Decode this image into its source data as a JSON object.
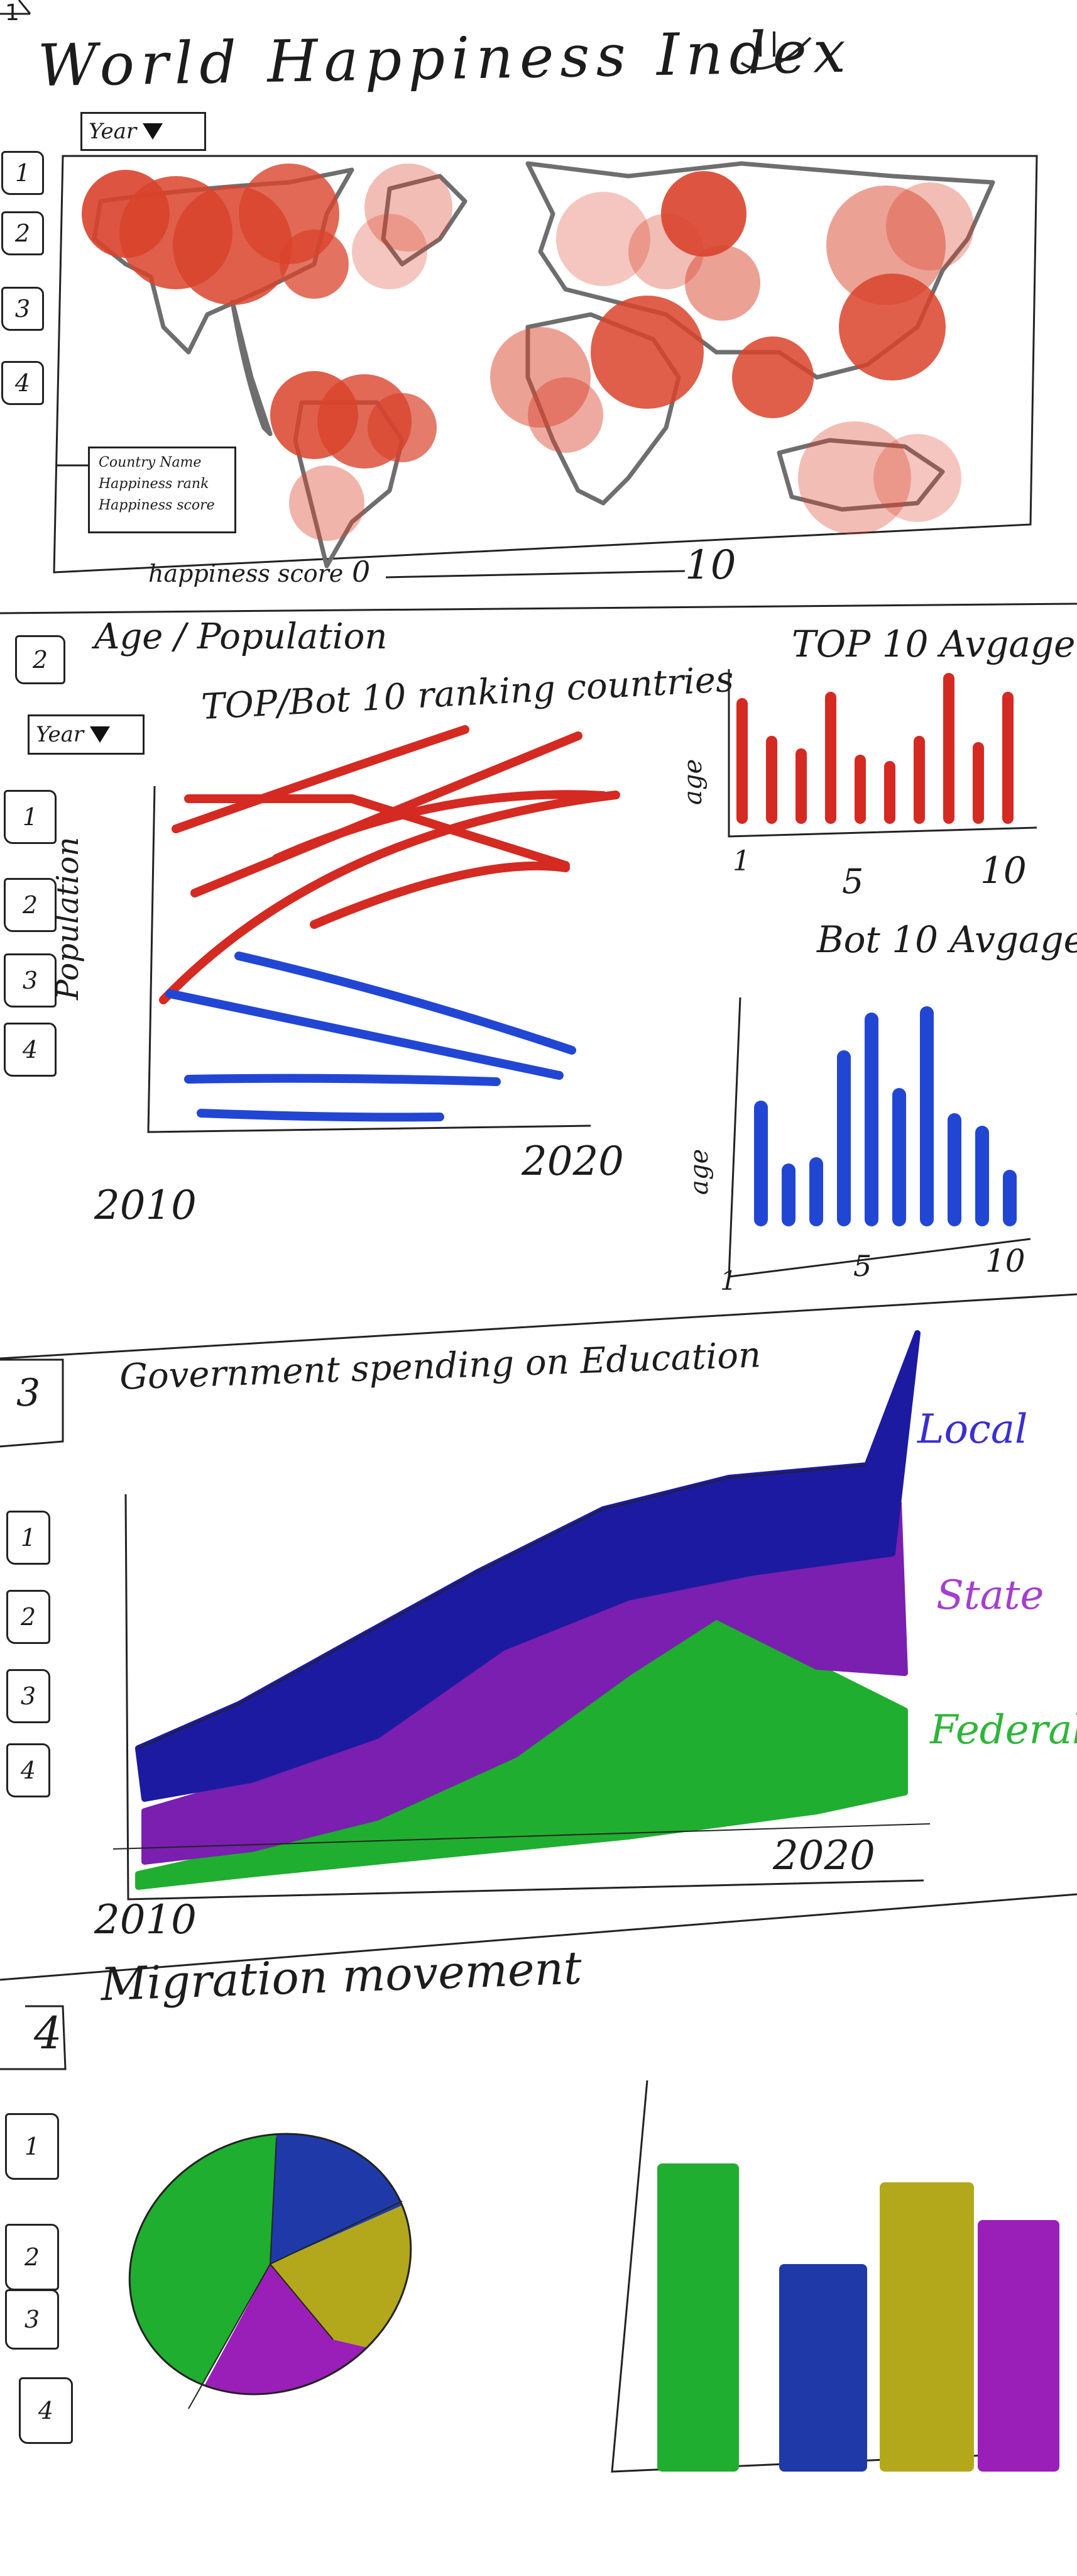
{
  "header": {
    "corner_number": "1",
    "title": "World Happiness Index",
    "smiley": ":)"
  },
  "sidebar_numbers": [
    "1",
    "2",
    "3",
    "4"
  ],
  "section1": {
    "year_button": "Year",
    "legend": [
      "Country Name",
      "Happiness rank",
      "Happiness score"
    ],
    "scale_label": "happiness score",
    "scale_min": "0",
    "scale_max": "10",
    "bubble_color": "#d9432c"
  },
  "section2": {
    "number": "2",
    "title": "Age / Population",
    "year_button": "Year",
    "line_chart_title": "TOP/Bot 10 ranking countries",
    "line_ylabel": "Population",
    "line_x_start": "2010",
    "line_x_end": "2020",
    "top_color": "#d42a22",
    "bot_color": "#2246d4",
    "top_bar_title": "TOP 10 Avgage",
    "bot_bar_title": "Bot 10 Avgage",
    "bar_ylabel": "age",
    "bar_x_ticks": [
      "1",
      "5",
      "10"
    ]
  },
  "section3": {
    "number": "3",
    "title": "Government spending on Education",
    "x_start": "2010",
    "x_end": "2020",
    "series": [
      {
        "name": "Local",
        "color": "#1c1aa0"
      },
      {
        "name": "State",
        "color": "#7a1fb0"
      },
      {
        "name": "Federal",
        "color": "#1fae2f"
      }
    ]
  },
  "section4": {
    "number": "4",
    "title": "Migration movement",
    "colors": [
      "#1fae2f",
      "#1f3aa8",
      "#b3a81b",
      "#9a1fb8"
    ]
  }
}
